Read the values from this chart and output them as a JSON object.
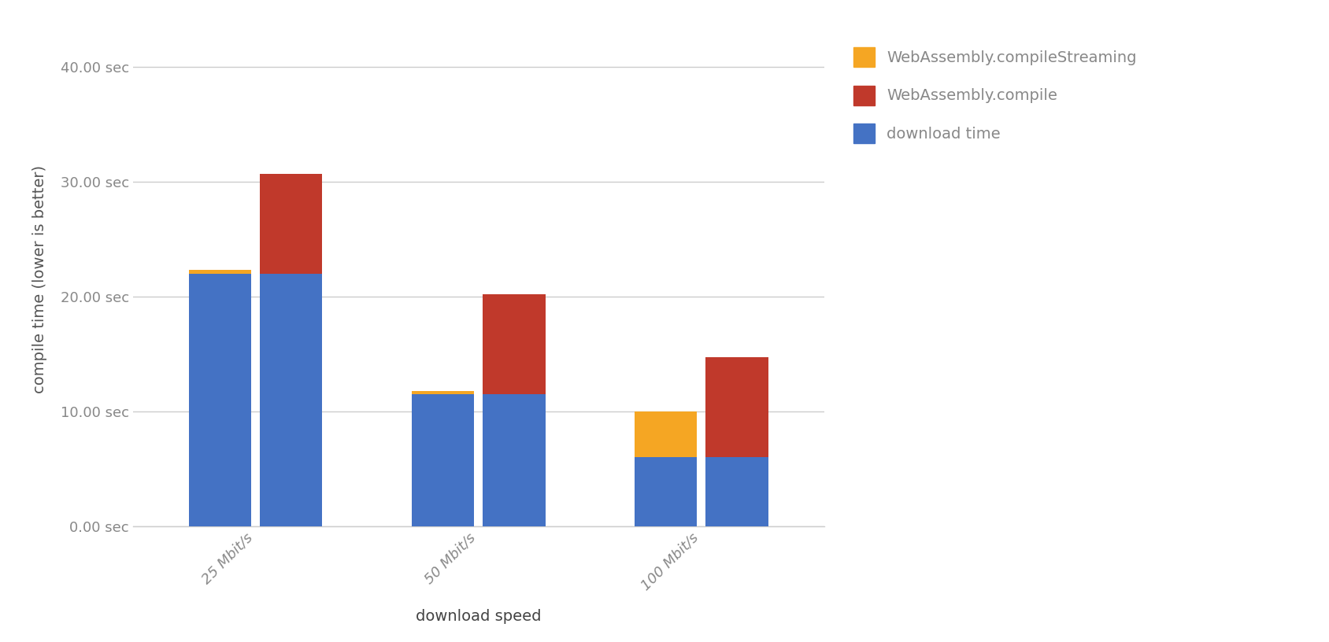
{
  "categories": [
    "25 Mbit/s",
    "50 Mbit/s",
    "100 Mbit/s"
  ],
  "bar_width": 0.28,
  "compile_download": [
    22.0,
    11.5,
    6.0
  ],
  "compile_orange": [
    0.3,
    0.3,
    4.0
  ],
  "compile_red": [
    0.0,
    0.0,
    0.0
  ],
  "streaming_download": [
    22.0,
    11.5,
    6.0
  ],
  "streaming_orange": [
    0.0,
    0.0,
    0.0
  ],
  "streaming_red": [
    8.7,
    8.7,
    8.7
  ],
  "blue_color": "#4472c4",
  "red_color": "#c0392b",
  "orange_color": "#f5a623",
  "background_color": "#ffffff",
  "grid_color": "#cccccc",
  "ylabel": "compile time (lower is better)",
  "xlabel": "download speed",
  "yticks": [
    0,
    10,
    20,
    30,
    40
  ],
  "ytick_labels": [
    "0.00 sec",
    "10.00 sec",
    "20.00 sec",
    "30.00 sec",
    "40.00 sec"
  ],
  "ylim": [
    0,
    43
  ],
  "legend_labels": [
    "WebAssembly.compileStreaming",
    "WebAssembly.compile",
    "download time"
  ],
  "legend_colors": [
    "#f5a623",
    "#c0392b",
    "#4472c4"
  ],
  "label_fontsize": 14,
  "tick_fontsize": 13,
  "legend_fontsize": 14,
  "bar_gap": 0.04
}
